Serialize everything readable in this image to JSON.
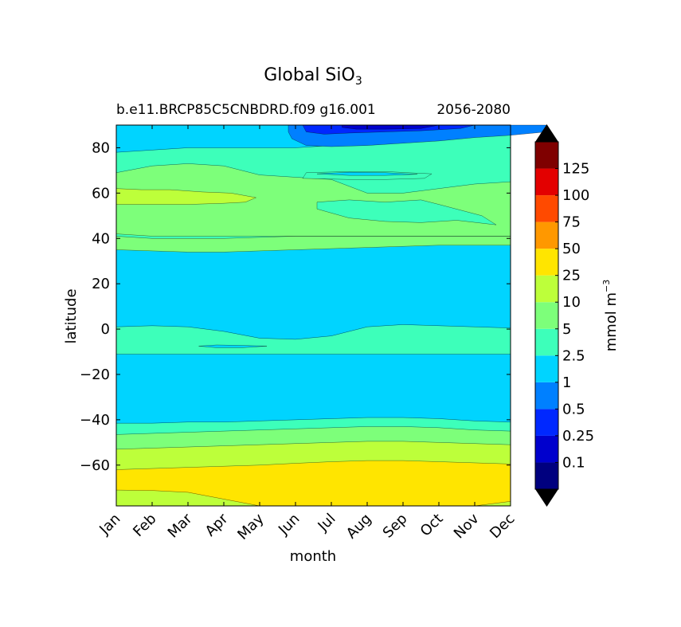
{
  "chart_data": {
    "type": "heatmap",
    "title": "Global SiO",
    "title_subscript": "3",
    "subtitle_left": "b.e11.BRCP85C5CNBDRD.f09 g16.001",
    "subtitle_right": "2056-2080",
    "xlabel": "month",
    "ylabel": "latitude",
    "x_ticks": [
      "Jan",
      "Feb",
      "Mar",
      "Apr",
      "May",
      "Jun",
      "Jul",
      "Aug",
      "Sep",
      "Oct",
      "Nov",
      "Dec"
    ],
    "ylim": [
      -78,
      90
    ],
    "y_ticks": [
      80,
      60,
      40,
      20,
      0,
      -20,
      -40,
      -60
    ],
    "y_tick_labels": [
      "80",
      "60",
      "40",
      "20",
      "0",
      "−20",
      "−40",
      "−60"
    ],
    "colorbar": {
      "label": "mmol m",
      "label_superscript": "−3",
      "levels": [
        "0.1",
        "0.25",
        "0.5",
        "1",
        "2.5",
        "5",
        "10",
        "25",
        "50",
        "75",
        "100",
        "125"
      ],
      "colors": [
        "#00007f",
        "#0000cd",
        "#0028ff",
        "#0080ff",
        "#00d4ff",
        "#3dffba",
        "#7dff7a",
        "#bdff3a",
        "#ffe500",
        "#ff9800",
        "#ff4a00",
        "#e30000",
        "#7f0000"
      ],
      "extend": "both",
      "under_color": "#000000",
      "over_color": "#000000"
    },
    "bands": [
      {
        "color": "#bdff3a",
        "lat_bottom_by_month": [
          -78,
          -78,
          -78,
          -78,
          -78,
          -78,
          -78,
          -78,
          -78,
          -78,
          -78,
          -78
        ],
        "lat_top_by_month": [
          -71,
          -71.2,
          -72,
          -75,
          -78,
          -78,
          -78,
          -78,
          -78,
          -78,
          -78,
          -76
        ]
      },
      {
        "color": "#ffe500",
        "lat_bottom_by_month": [
          -71,
          -71.2,
          -72,
          -75,
          -78,
          -78,
          -78,
          -78,
          -78,
          -78,
          -78,
          -76
        ],
        "lat_top_by_month": [
          -62,
          -61.5,
          -61,
          -60.5,
          -60,
          -59.2,
          -58.5,
          -58,
          -58,
          -58.5,
          -59,
          -59.5
        ]
      },
      {
        "color": "#bdff3a",
        "lat_bottom_by_month": [
          -62,
          -61.5,
          -61,
          -60.5,
          -60,
          -59.2,
          -58.5,
          -58,
          -58,
          -58.5,
          -59,
          -59.5
        ],
        "lat_top_by_month": [
          -53,
          -52.5,
          -52,
          -51.5,
          -51,
          -50.5,
          -50,
          -49.5,
          -49.5,
          -50,
          -50.5,
          -51
        ]
      },
      {
        "color": "#7dff7a",
        "lat_bottom_by_month": [
          -53,
          -52.5,
          -52,
          -51.5,
          -51,
          -50.5,
          -50,
          -49.5,
          -49.5,
          -50,
          -50.5,
          -51
        ],
        "lat_top_by_month": [
          -46.5,
          -46,
          -45.5,
          -45,
          -44.5,
          -44,
          -43.5,
          -43,
          -43,
          -43.5,
          -44.5,
          -45
        ]
      },
      {
        "color": "#3dffba",
        "lat_bottom_by_month": [
          -46.5,
          -46,
          -45.5,
          -45,
          -44.5,
          -44,
          -43.5,
          -43,
          -43,
          -43.5,
          -44.5,
          -45
        ],
        "lat_top_by_month": [
          -41.5,
          -41.5,
          -41,
          -41,
          -40.5,
          -40,
          -39.5,
          -39,
          -39,
          -39.5,
          -40.5,
          -41
        ]
      },
      {
        "color": "#00d4ff",
        "lat_bottom_by_month": [
          -41.5,
          -41.5,
          -41,
          -41,
          -40.5,
          -40,
          -39.5,
          -39,
          -39,
          -39.5,
          -40.5,
          -41
        ],
        "lat_top_by_month": [
          -11,
          -11,
          -11,
          -11,
          -11,
          -11,
          -11,
          -11,
          -11,
          -11,
          -11,
          -11
        ]
      },
      {
        "color": "#3dffba",
        "lat_bottom_by_month": [
          -11,
          -11,
          -11,
          -11,
          -11,
          -11,
          -11,
          -11,
          -11,
          -11,
          -11,
          -11
        ],
        "lat_top_by_month": [
          1,
          1.5,
          1,
          -1,
          -4,
          -4.5,
          -3,
          1,
          2,
          1.5,
          1,
          0.5
        ]
      },
      {
        "color": "#00d4ff",
        "lat_bottom_by_month": [
          1,
          1.5,
          1,
          -1,
          -4,
          -4.5,
          -3,
          1,
          2,
          1.5,
          1,
          0.5
        ],
        "lat_top_by_month": [
          35,
          34.5,
          34,
          34,
          34.5,
          35,
          35.5,
          36,
          36.5,
          37,
          37,
          37
        ]
      },
      {
        "color": "#7dff7a",
        "lat_bottom_by_month": [
          35,
          34.5,
          34,
          34,
          34.5,
          35,
          35.5,
          36,
          36.5,
          37,
          37,
          37
        ],
        "lat_top_by_month": [
          41,
          40,
          40,
          40,
          40.5,
          41,
          41,
          41,
          41,
          41,
          41,
          41
        ]
      },
      {
        "color": "#3dffba",
        "lat_bottom_by_month": [
          41,
          40,
          40,
          40,
          40.5,
          41,
          41,
          41,
          41,
          41,
          41,
          41
        ],
        "lat_top_by_month": [
          42,
          41,
          41,
          41,
          41,
          41,
          41,
          41,
          41,
          41,
          41,
          41
        ]
      },
      {
        "color": "#7dff7a",
        "lat_bottom_by_month": [
          42,
          41,
          41,
          41,
          41,
          41,
          41,
          41,
          41,
          41,
          41,
          41
        ],
        "lat_top_by_month": [
          69,
          72,
          73,
          72,
          68,
          67,
          66,
          60,
          60,
          62,
          64,
          65
        ]
      },
      {
        "color": "#3dffba",
        "lat_bottom_by_month": [
          69,
          72,
          73,
          72,
          68,
          67,
          66,
          60,
          60,
          62,
          64,
          65
        ],
        "lat_top_by_month": [
          78,
          79,
          80,
          80,
          80,
          80,
          81,
          83,
          85,
          86,
          87,
          88
        ]
      },
      {
        "color": "#00d4ff",
        "lat_bottom_by_month": [
          78,
          79,
          80,
          80,
          80,
          80,
          81,
          83,
          85,
          86,
          87,
          88
        ],
        "lat_top_by_month": [
          90,
          90,
          90,
          90,
          90,
          90,
          90,
          90,
          90,
          90,
          90,
          90
        ]
      }
    ],
    "patches": [
      {
        "color": "#bdff3a",
        "points": [
          [
            0,
            62
          ],
          [
            0.7,
            61.5
          ],
          [
            1.5,
            61.5
          ],
          [
            2.4,
            60.5
          ],
          [
            3.2,
            60
          ],
          [
            3.9,
            58
          ],
          [
            3.6,
            56
          ],
          [
            3,
            55.5
          ],
          [
            2,
            55
          ],
          [
            1,
            55
          ],
          [
            0,
            55
          ]
        ]
      },
      {
        "color": "#3dffba",
        "points": [
          [
            5.6,
            56
          ],
          [
            6.5,
            57
          ],
          [
            7.5,
            56
          ],
          [
            8.5,
            57
          ],
          [
            9,
            55
          ],
          [
            10.2,
            50
          ],
          [
            10.6,
            46
          ],
          [
            9.5,
            48
          ],
          [
            8.5,
            47
          ],
          [
            7.5,
            47.5
          ],
          [
            6.5,
            49
          ],
          [
            5.6,
            53
          ]
        ]
      },
      {
        "color": "#3dffba",
        "points": [
          [
            5.3,
            69
          ],
          [
            6.5,
            69.5
          ],
          [
            7.5,
            69.5
          ],
          [
            8.8,
            68.5
          ],
          [
            8.6,
            66.5
          ],
          [
            7.5,
            66
          ],
          [
            6.5,
            66
          ],
          [
            5.2,
            66.5
          ]
        ]
      },
      {
        "color": "#00d4ff",
        "points": [
          [
            5.6,
            68.5
          ],
          [
            6.5,
            69.2
          ],
          [
            7.5,
            69
          ],
          [
            8.4,
            68.3
          ],
          [
            7.5,
            67.8
          ],
          [
            6.5,
            67.8
          ]
        ]
      },
      {
        "color": "#00d4ff",
        "points": [
          [
            2.3,
            -7.5
          ],
          [
            2.8,
            -7
          ],
          [
            3.5,
            -7.2
          ],
          [
            4.2,
            -7.5
          ],
          [
            3.5,
            -8.2
          ],
          [
            2.8,
            -8.2
          ]
        ]
      },
      {
        "color": "#0080ff",
        "points": [
          [
            4.8,
            90
          ],
          [
            12,
            90
          ],
          [
            12,
            87
          ],
          [
            11,
            85.5
          ],
          [
            10,
            84.5
          ],
          [
            9,
            83
          ],
          [
            8,
            82
          ],
          [
            7,
            81
          ],
          [
            6,
            80.5
          ],
          [
            5.3,
            81
          ],
          [
            4.9,
            84
          ],
          [
            4.8,
            87
          ]
        ]
      },
      {
        "color": "#0028ff",
        "points": [
          [
            5.2,
            90
          ],
          [
            10,
            90
          ],
          [
            9.6,
            88.5
          ],
          [
            8.5,
            87.5
          ],
          [
            7.5,
            87
          ],
          [
            6.5,
            86.5
          ],
          [
            5.8,
            86
          ],
          [
            5.3,
            87
          ]
        ]
      },
      {
        "color": "#0000cd",
        "points": [
          [
            6.3,
            90
          ],
          [
            9,
            90
          ],
          [
            8.5,
            88.5
          ],
          [
            7.5,
            88.2
          ],
          [
            6.7,
            88.2
          ],
          [
            6.3,
            89
          ]
        ]
      }
    ]
  }
}
